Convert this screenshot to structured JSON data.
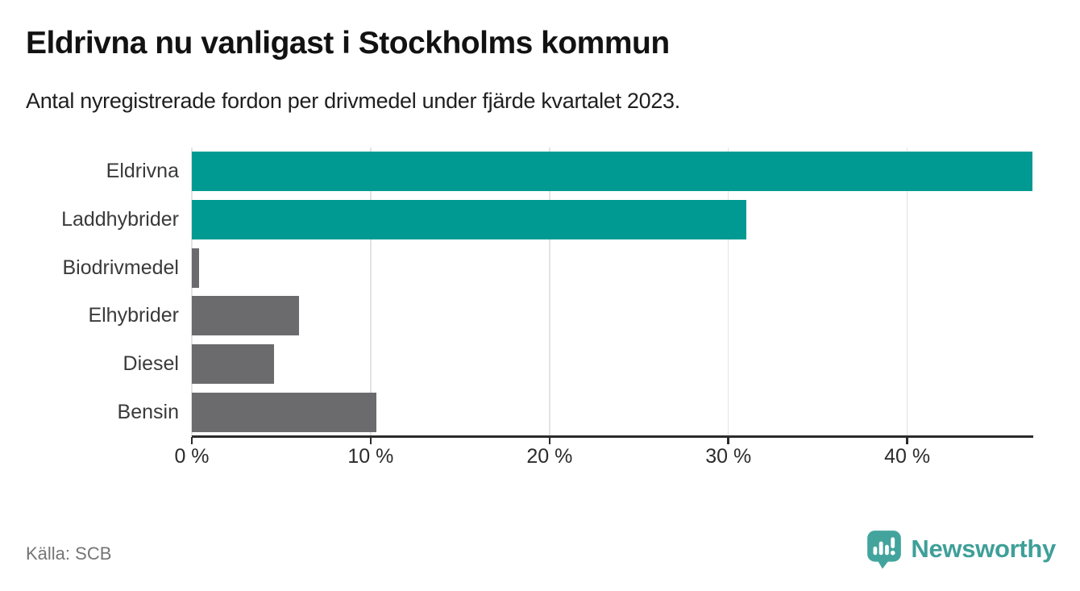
{
  "header": {
    "title": "Eldrivna nu vanligast i Stockholms kommun",
    "subtitle": "Antal nyregistrerade fordon per drivmedel under fjärde kvartalet 2023."
  },
  "footer": {
    "source": "Källa: SCB",
    "brand": "Newsworthy"
  },
  "colors": {
    "accent_teal": "#009a92",
    "neutral_gray": "#6b6b6e",
    "gridline": "#e3e3e3",
    "axis": "#2b2b2b",
    "logo_teal": "#3f9f99"
  },
  "chart_data": {
    "type": "bar",
    "orientation": "horizontal",
    "title": "Eldrivna nu vanligast i Stockholms kommun",
    "subtitle": "Antal nyregistrerade fordon per drivmedel under fjärde kvartalet 2023.",
    "categories": [
      "Eldrivna",
      "Laddhybrider",
      "Biodrivmedel",
      "Elhybrider",
      "Diesel",
      "Bensin"
    ],
    "values": [
      47.0,
      31.0,
      0.4,
      6.0,
      4.6,
      10.3
    ],
    "unit": "%",
    "bar_colors": [
      "#009a92",
      "#009a92",
      "#6b6b6e",
      "#6b6b6e",
      "#6b6b6e",
      "#6b6b6e"
    ],
    "xlabel": "",
    "ylabel": "",
    "xlim": [
      0,
      47.0
    ],
    "xticks": [
      0,
      10,
      20,
      30,
      40
    ],
    "xtick_labels": [
      "0 %",
      "10 %",
      "20 %",
      "30 %",
      "40 %"
    ],
    "grid": true,
    "legend": false,
    "source": "Källa: SCB"
  }
}
